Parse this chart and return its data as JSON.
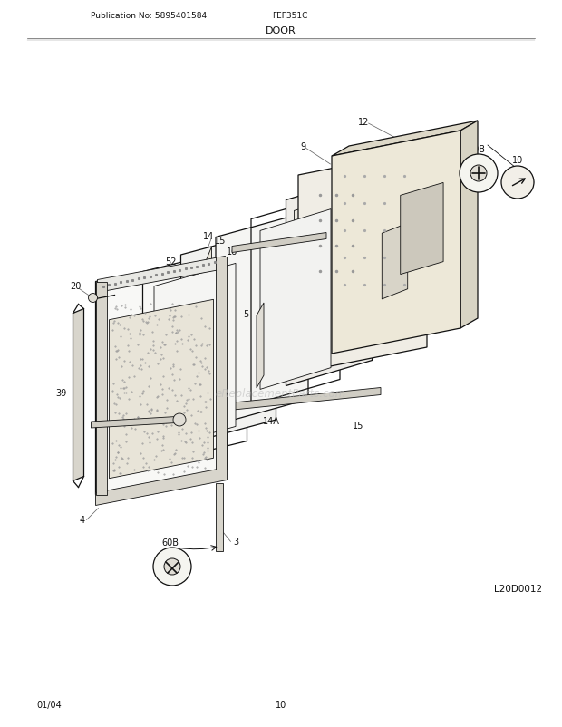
{
  "title": "DOOR",
  "pub_no": "Publication No: 5895401584",
  "model": "FEF351C",
  "diagram_id": "L20D0012",
  "date": "01/04",
  "page": "10",
  "bg_color": "#ffffff",
  "line_color": "#111111",
  "label_color": "#111111",
  "watermark": "eReplacementParts.com",
  "figsize": [
    6.2,
    8.03
  ],
  "dpi": 100
}
